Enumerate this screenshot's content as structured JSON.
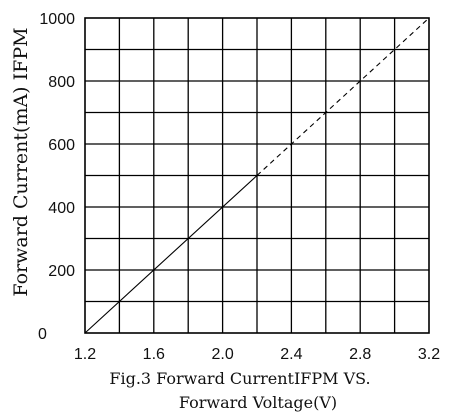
{
  "chart_data": {
    "type": "line",
    "ylabel": "Forward Current(mA) IFPM",
    "xlabel": "",
    "caption_line1": "Fig.3 Forward CurrentIFPM VS.",
    "caption_line2": "Forward Voltage(V)",
    "xlim": [
      1.2,
      3.2
    ],
    "ylim": [
      0,
      1000
    ],
    "x_ticks": [
      "1.2",
      "1.6",
      "2.0",
      "2.4",
      "2.8",
      "3.2"
    ],
    "y_ticks": [
      "0",
      "200",
      "400",
      "600",
      "800",
      "1000"
    ],
    "grid": true,
    "grid_x_step": 0.2,
    "grid_y_step": 100,
    "series": [
      {
        "style": "solid",
        "x": [
          1.2,
          2.2
        ],
        "y": [
          0,
          500
        ]
      },
      {
        "style": "dashed",
        "x": [
          2.2,
          3.2
        ],
        "y": [
          500,
          1000
        ]
      }
    ]
  }
}
